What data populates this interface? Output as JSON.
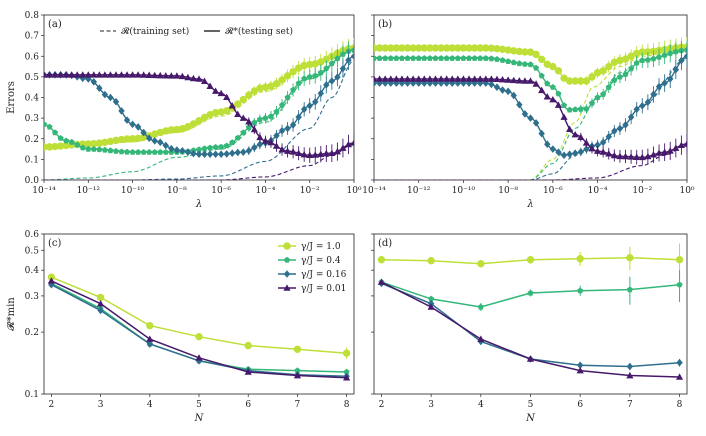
{
  "chart_data": [
    {
      "panel": "(a)",
      "type": "line",
      "xscale": "log",
      "xlabel": "λ",
      "ylabel": "Errors",
      "xlim": [
        1e-14,
        1
      ],
      "ylim": [
        0,
        0.8
      ],
      "xticks": [
        -14,
        -12,
        -10,
        -8,
        -6,
        -4,
        -2,
        0
      ],
      "xtick_labels": [
        "10⁻¹⁴",
        "10⁻¹²",
        "10⁻¹⁰",
        "10⁻⁸",
        "10⁻⁶",
        "10⁻⁴",
        "10⁻²",
        "10⁰"
      ],
      "yticks": [
        0.0,
        0.1,
        0.2,
        0.3,
        0.4,
        0.5,
        0.6,
        0.7,
        0.8
      ],
      "ytick_labels": [
        "0.0",
        "0.1",
        "0.2",
        "0.3",
        "0.4",
        "0.5",
        "0.6",
        "0.7",
        "0.8"
      ],
      "legend": {
        "position": "top",
        "entries": [
          {
            "label": "𝓡(training set)",
            "style": "dashed"
          },
          {
            "label": "𝓡*(testing set)",
            "style": "solid"
          }
        ]
      },
      "series": [
        {
          "name": "γ/J = 1.0",
          "color": "#bddf38",
          "marker": "circle",
          "test": [
            [
              -14,
              0.16
            ],
            [
              -12,
              0.175
            ],
            [
              -10,
              0.2
            ],
            [
              -8,
              0.245
            ],
            [
              -6,
              0.33
            ],
            [
              -4,
              0.45
            ],
            [
              -2,
              0.56
            ],
            [
              0,
              0.64
            ]
          ],
          "train": [
            [
              -14,
              0.15
            ],
            [
              -12,
              0.165
            ],
            [
              -10,
              0.185
            ],
            [
              -8,
              0.23
            ],
            [
              -6,
              0.31
            ],
            [
              -4,
              0.43
            ],
            [
              -2,
              0.55
            ],
            [
              0,
              0.635
            ]
          ]
        },
        {
          "name": "γ/J = 0.4",
          "color": "#35b779",
          "marker": "pentagon",
          "test": [
            [
              -14,
              0.27
            ],
            [
              -13,
              0.19
            ],
            [
              -12,
              0.15
            ],
            [
              -10,
              0.135
            ],
            [
              -8,
              0.135
            ],
            [
              -6,
              0.16
            ],
            [
              -4,
              0.3
            ],
            [
              -2,
              0.5
            ],
            [
              0,
              0.63
            ]
          ],
          "train": [
            [
              -14,
              0.0
            ],
            [
              -12,
              0.01
            ],
            [
              -10,
              0.04
            ],
            [
              -8,
              0.11
            ],
            [
              -6,
              0.15
            ],
            [
              -4,
              0.28
            ],
            [
              -2,
              0.49
            ],
            [
              0,
              0.625
            ]
          ]
        },
        {
          "name": "γ/J = 0.16",
          "color": "#2f6f8e",
          "marker": "diamond",
          "test": [
            [
              -14,
              0.51
            ],
            [
              -13,
              0.51
            ],
            [
              -12,
              0.49
            ],
            [
              -11,
              0.4
            ],
            [
              -10,
              0.27
            ],
            [
              -9,
              0.19
            ],
            [
              -8,
              0.145
            ],
            [
              -7,
              0.125
            ],
            [
              -6,
              0.125
            ],
            [
              -5,
              0.135
            ],
            [
              -4,
              0.18
            ],
            [
              -3,
              0.25
            ],
            [
              -2,
              0.36
            ],
            [
              -1,
              0.48
            ],
            [
              0,
              0.6
            ]
          ],
          "train": [
            [
              -14,
              0.0
            ],
            [
              -10,
              0.0
            ],
            [
              -8,
              0.005
            ],
            [
              -6,
              0.02
            ],
            [
              -4,
              0.09
            ],
            [
              -2,
              0.25
            ],
            [
              -1,
              0.4
            ],
            [
              0,
              0.58
            ]
          ]
        },
        {
          "name": "γ/J = 0.01",
          "color": "#46196b",
          "marker": "triangle",
          "test": [
            [
              -14,
              0.51
            ],
            [
              -10,
              0.51
            ],
            [
              -8,
              0.505
            ],
            [
              -7,
              0.49
            ],
            [
              -6,
              0.42
            ],
            [
              -5,
              0.3
            ],
            [
              -4,
              0.19
            ],
            [
              -3,
              0.14
            ],
            [
              -2,
              0.12
            ],
            [
              -1,
              0.13
            ],
            [
              0,
              0.18
            ]
          ],
          "train": [
            [
              -14,
              0.0
            ],
            [
              -8,
              0.0
            ],
            [
              -6,
              0.0
            ],
            [
              -4,
              0.015
            ],
            [
              -2,
              0.07
            ],
            [
              -1,
              0.12
            ],
            [
              0,
              0.175
            ]
          ]
        }
      ]
    },
    {
      "panel": "(b)",
      "type": "line",
      "xscale": "log",
      "xlabel": "λ",
      "ylabel": "",
      "xlim": [
        1e-14,
        1
      ],
      "ylim": [
        0,
        0.8
      ],
      "xticks": [
        -14,
        -12,
        -10,
        -8,
        -6,
        -4,
        -2,
        0
      ],
      "xtick_labels": [
        "10⁻¹⁴",
        "10⁻¹²",
        "10⁻¹⁰",
        "10⁻⁸",
        "10⁻⁶",
        "10⁻⁴",
        "10⁻²",
        "10⁰"
      ],
      "series": [
        {
          "name": "γ/J = 1.0",
          "color": "#bddf38",
          "marker": "circle",
          "test": [
            [
              -14,
              0.64
            ],
            [
              -9,
              0.64
            ],
            [
              -7,
              0.62
            ],
            [
              -6,
              0.55
            ],
            [
              -5.3,
              0.48
            ],
            [
              -4.5,
              0.48
            ],
            [
              -4,
              0.52
            ],
            [
              -3,
              0.58
            ],
            [
              -2,
              0.62
            ],
            [
              0,
              0.645
            ]
          ],
          "train": [
            [
              -14,
              0.0
            ],
            [
              -7,
              0.0
            ],
            [
              -6,
              0.1
            ],
            [
              -5,
              0.28
            ],
            [
              -4.2,
              0.45
            ],
            [
              -3,
              0.55
            ],
            [
              -2,
              0.6
            ],
            [
              0,
              0.64
            ]
          ]
        },
        {
          "name": "γ/J = 0.4",
          "color": "#35b779",
          "marker": "pentagon",
          "test": [
            [
              -14,
              0.59
            ],
            [
              -9,
              0.59
            ],
            [
              -7,
              0.56
            ],
            [
              -6,
              0.45
            ],
            [
              -5.3,
              0.34
            ],
            [
              -4.5,
              0.345
            ],
            [
              -4,
              0.4
            ],
            [
              -3,
              0.5
            ],
            [
              -2,
              0.58
            ],
            [
              0,
              0.63
            ]
          ],
          "train": [
            [
              -14,
              0.0
            ],
            [
              -7,
              0.0
            ],
            [
              -6,
              0.08
            ],
            [
              -5,
              0.25
            ],
            [
              -4,
              0.4
            ],
            [
              -3,
              0.52
            ],
            [
              -2,
              0.58
            ],
            [
              0,
              0.625
            ]
          ]
        },
        {
          "name": "γ/J = 0.16",
          "color": "#2f6f8e",
          "marker": "diamond",
          "test": [
            [
              -14,
              0.47
            ],
            [
              -9,
              0.47
            ],
            [
              -8,
              0.43
            ],
            [
              -7,
              0.3
            ],
            [
              -6,
              0.15
            ],
            [
              -5.5,
              0.12
            ],
            [
              -5,
              0.13
            ],
            [
              -4,
              0.17
            ],
            [
              -3,
              0.25
            ],
            [
              -2,
              0.36
            ],
            [
              -1,
              0.47
            ],
            [
              0,
              0.6
            ]
          ],
          "train": [
            [
              -14,
              0.0
            ],
            [
              -7,
              0.0
            ],
            [
              -6,
              0.03
            ],
            [
              -5,
              0.12
            ],
            [
              -4,
              0.17
            ],
            [
              -3,
              0.25
            ],
            [
              -2,
              0.36
            ],
            [
              0,
              0.59
            ]
          ]
        },
        {
          "name": "γ/J = 0.01",
          "color": "#46196b",
          "marker": "triangle",
          "test": [
            [
              -14,
              0.49
            ],
            [
              -9,
              0.49
            ],
            [
              -7,
              0.48
            ],
            [
              -6,
              0.39
            ],
            [
              -5,
              0.22
            ],
            [
              -4,
              0.14
            ],
            [
              -3,
              0.115
            ],
            [
              -2,
              0.11
            ],
            [
              -1,
              0.135
            ],
            [
              0,
              0.175
            ]
          ],
          "train": [
            [
              -14,
              0.0
            ],
            [
              -6,
              0.0
            ],
            [
              -4,
              0.01
            ],
            [
              -2,
              0.07
            ],
            [
              -1,
              0.12
            ],
            [
              0,
              0.17
            ]
          ]
        }
      ]
    },
    {
      "panel": "(c)",
      "type": "line",
      "yscale": "log",
      "xlabel": "N",
      "ylabel": "𝓡*min",
      "xlim": [
        1.85,
        8.15
      ],
      "ylim": [
        0.1,
        0.6
      ],
      "xticks": [
        2,
        3,
        4,
        5,
        6,
        7,
        8
      ],
      "xtick_labels": [
        "2",
        "3",
        "4",
        "5",
        "6",
        "7",
        "8"
      ],
      "yticks": [
        0.1,
        0.2,
        0.3,
        0.4,
        0.5,
        0.6
      ],
      "ytick_labels": [
        "0.1",
        "0.2",
        "0.3",
        "0.4",
        "0.5",
        "0.6"
      ],
      "legend": {
        "position": "upper right",
        "entries": [
          {
            "label": "γ/J = 1.0",
            "color": "#bddf38",
            "marker": "circle"
          },
          {
            "label": "γ/J = 0.4",
            "color": "#35b779",
            "marker": "pentagon"
          },
          {
            "label": "γ/J = 0.16",
            "color": "#2f6f8e",
            "marker": "diamond"
          },
          {
            "label": "γ/J = 0.01",
            "color": "#46196b",
            "marker": "triangle"
          }
        ]
      },
      "series": [
        {
          "name": "γ/J = 1.0",
          "color": "#bddf38",
          "marker": "circle",
          "x": [
            2,
            3,
            4,
            5,
            6,
            7,
            8
          ],
          "y": [
            0.37,
            0.295,
            0.215,
            0.19,
            0.172,
            0.165,
            0.158
          ],
          "err": [
            0.005,
            0.005,
            0.005,
            0.004,
            0.004,
            0.006,
            0.01
          ]
        },
        {
          "name": "γ/J = 0.4",
          "color": "#35b779",
          "marker": "pentagon",
          "x": [
            2,
            3,
            4,
            5,
            6,
            7,
            8
          ],
          "y": [
            0.345,
            0.26,
            0.175,
            0.145,
            0.132,
            0.13,
            0.128
          ],
          "err": [
            0.004,
            0.004,
            0.003,
            0.003,
            0.003,
            0.003,
            0.003
          ]
        },
        {
          "name": "γ/J = 0.16",
          "color": "#2f6f8e",
          "marker": "diamond",
          "x": [
            2,
            3,
            4,
            5,
            6,
            7,
            8
          ],
          "y": [
            0.34,
            0.255,
            0.175,
            0.145,
            0.13,
            0.124,
            0.122
          ],
          "err": [
            0.004,
            0.004,
            0.003,
            0.003,
            0.003,
            0.003,
            0.003
          ]
        },
        {
          "name": "γ/J = 0.01",
          "color": "#46196b",
          "marker": "triangle",
          "x": [
            2,
            3,
            4,
            5,
            6,
            7,
            8
          ],
          "y": [
            0.355,
            0.275,
            0.185,
            0.15,
            0.128,
            0.123,
            0.12
          ],
          "err": [
            0.004,
            0.004,
            0.003,
            0.003,
            0.003,
            0.003,
            0.003
          ]
        }
      ]
    },
    {
      "panel": "(d)",
      "type": "line",
      "yscale": "log",
      "xlabel": "N",
      "ylabel": "",
      "xlim": [
        1.85,
        8.15
      ],
      "ylim": [
        0.1,
        0.6
      ],
      "xticks": [
        2,
        3,
        4,
        5,
        6,
        7,
        8
      ],
      "xtick_labels": [
        "2",
        "3",
        "4",
        "5",
        "6",
        "7",
        "8"
      ],
      "series": [
        {
          "name": "γ/J = 1.0",
          "color": "#bddf38",
          "marker": "circle",
          "x": [
            2,
            3,
            4,
            5,
            6,
            7,
            8
          ],
          "y": [
            0.45,
            0.445,
            0.43,
            0.45,
            0.455,
            0.46,
            0.45
          ],
          "err": [
            0.01,
            0.015,
            0.015,
            0.02,
            0.035,
            0.06,
            0.09
          ]
        },
        {
          "name": "γ/J = 0.4",
          "color": "#35b779",
          "marker": "pentagon",
          "x": [
            2,
            3,
            4,
            5,
            6,
            7,
            8
          ],
          "y": [
            0.35,
            0.29,
            0.265,
            0.31,
            0.318,
            0.322,
            0.34
          ],
          "err": [
            0.008,
            0.01,
            0.012,
            0.012,
            0.018,
            0.05,
            0.06
          ]
        },
        {
          "name": "γ/J = 0.16",
          "color": "#2f6f8e",
          "marker": "diamond",
          "x": [
            2,
            3,
            4,
            5,
            6,
            7,
            8
          ],
          "y": [
            0.345,
            0.275,
            0.18,
            0.148,
            0.138,
            0.136,
            0.142
          ],
          "err": [
            0.004,
            0.005,
            0.004,
            0.004,
            0.004,
            0.004,
            0.006
          ]
        },
        {
          "name": "γ/J = 0.01",
          "color": "#46196b",
          "marker": "triangle",
          "x": [
            2,
            3,
            4,
            5,
            6,
            7,
            8
          ],
          "y": [
            0.35,
            0.265,
            0.185,
            0.148,
            0.13,
            0.123,
            0.121
          ],
          "err": [
            0.004,
            0.004,
            0.003,
            0.003,
            0.003,
            0.003,
            0.003
          ]
        }
      ]
    }
  ]
}
